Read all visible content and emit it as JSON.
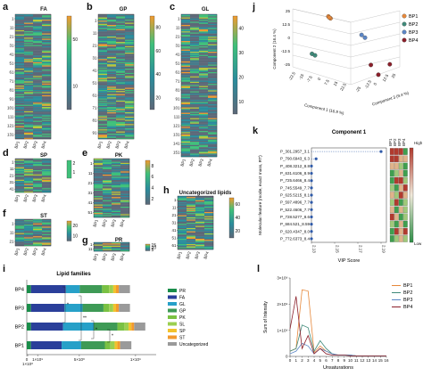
{
  "colors": {
    "heat_low": "#2b8c9c",
    "heat_mid": "#3fc07a",
    "heat_high": "#f29a2e",
    "heat_bg": "#5d6878",
    "bp1": "#e6883a",
    "bp2": "#3f8a7a",
    "bp3": "#5b86c6",
    "bp4": "#8b1f2a"
  },
  "panels": {
    "a": {
      "letter": "a",
      "title": "FA",
      "samples": [
        "BP1",
        "BP2",
        "BP3",
        "BP4"
      ],
      "yticks": [
        "1",
        "11",
        "21",
        "31",
        "41",
        "51",
        "61",
        "71",
        "81",
        "91",
        "101",
        "111",
        "121",
        "131"
      ],
      "cbar_ticks": [
        "50",
        "10"
      ]
    },
    "b": {
      "letter": "b",
      "title": "GP",
      "samples": [
        "BP1",
        "BP2",
        "BP3",
        "BP4"
      ],
      "yticks": [
        "1",
        "11",
        "21",
        "31",
        "41",
        "51",
        "61",
        "71",
        "81",
        "91"
      ],
      "cbar_ticks": [
        "80",
        "60",
        "40",
        "20"
      ]
    },
    "c": {
      "letter": "c",
      "title": "GL",
      "samples": [
        "BP1",
        "BP2",
        "BP3",
        "BP4"
      ],
      "yticks": [
        "1",
        "11",
        "21",
        "31",
        "41",
        "51",
        "61",
        "71",
        "81",
        "91",
        "101",
        "111",
        "121",
        "131",
        "141",
        "151"
      ],
      "cbar_ticks": [
        "40",
        "30",
        "20",
        "10"
      ]
    },
    "d": {
      "letter": "d",
      "title": "SP",
      "samples": [
        "BP1",
        "BP2",
        "BP3",
        "BP4"
      ],
      "yticks": [
        "1",
        "11",
        "21",
        "31",
        "41"
      ],
      "cbar_ticks": [
        "2",
        "1"
      ]
    },
    "e": {
      "letter": "e",
      "title": "PK",
      "samples": [
        "BP1",
        "BP2",
        "BP3",
        "BP4"
      ],
      "yticks": [
        "1",
        "11",
        "21",
        "31",
        "41",
        "51"
      ],
      "cbar_ticks": [
        "8",
        "6",
        "4",
        "2"
      ]
    },
    "f": {
      "letter": "f",
      "title": "ST",
      "samples": [
        "BP1",
        "BP2",
        "BP3",
        "BP4"
      ],
      "yticks": [
        "1",
        "11",
        "21"
      ],
      "cbar_ticks": [
        "20",
        "10"
      ]
    },
    "g": {
      "letter": "g",
      "title": "PR",
      "samples": [
        "BP1",
        "BP2",
        "BP3",
        "BP4"
      ],
      "yticks": [
        "1",
        "11"
      ],
      "cbar_ticks": [
        "15",
        "10",
        "5"
      ]
    },
    "h": {
      "letter": "h",
      "title": "Uncategorized lipids",
      "samples": [
        "BP1",
        "BP2",
        "BP3",
        "BP4"
      ],
      "yticks": [
        "1",
        "11",
        "21",
        "31",
        "41",
        "51",
        "61"
      ],
      "cbar_ticks": [
        "60",
        "40",
        "20"
      ]
    }
  },
  "chart_data": [
    {
      "panel": "j",
      "type": "scatter",
      "title": "",
      "axes": {
        "x": "Component 1 (16.9 %)",
        "y": "Component 2 (16.4 %)",
        "z": "Component 3 (9.4 %)"
      },
      "yticks": [
        "25",
        "12.5",
        "0",
        "-12.5",
        "-25"
      ],
      "xticks": [
        "-22.5",
        "-15",
        "-7.5",
        "0",
        "7.5",
        "15",
        "22.5"
      ],
      "zticks": [
        "-25",
        "-12.5",
        "0",
        "12.5",
        "25"
      ],
      "legend": [
        "BP1",
        "BP2",
        "BP3",
        "BP4"
      ],
      "series": [
        {
          "name": "BP1",
          "points": [
            [
              -5,
              20,
              8
            ],
            [
              -4,
              19,
              8
            ],
            [
              -5,
              19,
              7
            ]
          ]
        },
        {
          "name": "BP2",
          "points": [
            [
              -16,
              -12,
              0
            ],
            [
              -15,
              -13,
              -1
            ]
          ]
        },
        {
          "name": "BP3",
          "points": [
            [
              8,
              10,
              2
            ],
            [
              10,
              9,
              3
            ]
          ]
        },
        {
          "name": "BP4",
          "points": [
            [
              14,
              -8,
              6
            ],
            [
              17,
              -10,
              -8
            ],
            [
              15,
              -16,
              0
            ]
          ]
        }
      ]
    },
    {
      "panel": "k",
      "type": "scatter",
      "title": "Component 1",
      "xlabel": "VIP Score",
      "ylabel": "Molecular feature (mode, exact mass, RT)",
      "xticks": [
        "2.13",
        "2.15",
        "2.17",
        "2.19"
      ],
      "xlim": [
        2.13,
        2.19
      ],
      "categories": [
        "P_301.2957_3.1",
        "P_790.6943_6.3",
        "P_408.3212_8.8",
        "P_631.6106_8.9",
        "P_725.6466_8.4",
        "P_745.5549_7.7",
        "P_625.5215_8.1",
        "P_597.4896_7.7",
        "P_522.4606_7.7",
        "P_728.5277_8.6",
        "P_684.521_8.59",
        "P_620.4347_8.0",
        "P_772.6373_8.4"
      ],
      "values": [
        2.19,
        2.134,
        2.13,
        2.13,
        2.13,
        2.13,
        2.13,
        2.13,
        2.13,
        2.13,
        2.13,
        2.13,
        2.13
      ],
      "side_columns": [
        "BP1",
        "BP2",
        "BP3",
        "BP4"
      ],
      "scale_labels": {
        "high": "High",
        "low": "Low"
      }
    },
    {
      "panel": "i",
      "type": "bar",
      "title": "Lipid families",
      "categories": [
        "BP4",
        "BP3",
        "BP2",
        "BP1"
      ],
      "xticks": [
        "0",
        "1×10⁸",
        "1×10⁹",
        "5×10⁸",
        "1×10⁹"
      ],
      "legend": [
        "PR",
        "FA",
        "GL",
        "GP",
        "PK",
        "SL",
        "SP",
        "ST",
        "Uncategorized"
      ],
      "series": [
        {
          "name": "PR",
          "values": [
            0.3,
            0.3,
            0.3,
            0.3
          ]
        },
        {
          "name": "FA",
          "values": [
            2.5,
            2.4,
            2.3,
            2.2
          ]
        },
        {
          "name": "GL",
          "values": [
            1.0,
            1.3,
            2.2,
            1.4
          ]
        },
        {
          "name": "GP",
          "values": [
            1.6,
            1.5,
            1.7,
            1.7
          ]
        },
        {
          "name": "PK",
          "values": [
            0.5,
            0.4,
            0.5,
            0.4
          ]
        },
        {
          "name": "SL",
          "values": [
            0.3,
            0.3,
            0.3,
            0.3
          ]
        },
        {
          "name": "SP",
          "values": [
            0.2,
            0.2,
            0.2,
            0.2
          ]
        },
        {
          "name": "ST",
          "values": [
            0.2,
            0.2,
            0.2,
            0.2
          ]
        },
        {
          "name": "Uncategorized",
          "values": [
            0.8,
            0.8,
            0.8,
            0.8
          ]
        }
      ],
      "annotations": [
        "*",
        "**",
        "*",
        "*"
      ]
    },
    {
      "panel": "l",
      "type": "line",
      "title": "",
      "xlabel": "Unsaturations",
      "ylabel": "Sum of Intensity",
      "x": [
        0,
        1,
        2,
        3,
        4,
        5,
        6,
        7,
        8,
        9,
        10,
        11,
        12,
        13,
        14,
        15,
        16
      ],
      "xlim": [
        0,
        16
      ],
      "ylim": [
        0,
        3
      ],
      "yticks": [
        "0",
        "1×10⁹",
        "2×10⁹",
        "3×10⁹"
      ],
      "legend": [
        "BP1",
        "BP2",
        "BP3",
        "BP4"
      ],
      "series": [
        {
          "name": "BP1",
          "values": [
            0.2,
            0.3,
            2.55,
            2.5,
            0.15,
            0.4,
            0.2,
            0.1,
            0.05,
            0.05,
            0.05,
            0.02,
            0.02,
            0.02,
            0.02,
            0.02,
            0.02
          ]
        },
        {
          "name": "BP2",
          "values": [
            0.2,
            0.3,
            1.2,
            1.1,
            0.2,
            0.6,
            0.3,
            0.1,
            0.05,
            0.05,
            0.05,
            0.02,
            0.02,
            0.02,
            0.02,
            0.02,
            0.02
          ]
        },
        {
          "name": "BP3",
          "values": [
            0.1,
            0.2,
            0.5,
            0.4,
            0.1,
            0.3,
            0.2,
            0.1,
            0.05,
            0.05,
            0.05,
            0.02,
            0.02,
            0.02,
            0.02,
            0.02,
            0.02
          ]
        },
        {
          "name": "BP4",
          "values": [
            1.05,
            2.3,
            0.3,
            0.8,
            0.1,
            0.3,
            0.1,
            0.05,
            0.05,
            0.05,
            0.02,
            0.02,
            0.02,
            0.02,
            0.02,
            0.02,
            0.02
          ]
        }
      ]
    }
  ]
}
